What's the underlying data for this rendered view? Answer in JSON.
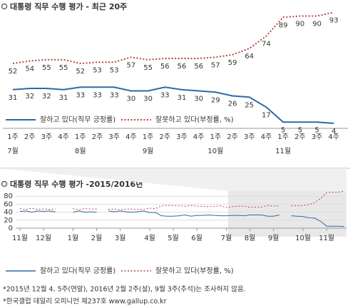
{
  "chart_data": [
    {
      "type": "line",
      "title": "대통령 직무 수행 평가 - 최근 20주",
      "categories": [
        "1주",
        "2주",
        "3주",
        "4주",
        "1주",
        "2주",
        "3주",
        "4주",
        "1주",
        "2주",
        "3주",
        "4주",
        "1주",
        "2주",
        "3주",
        "4주",
        "1주",
        "2주",
        "3주",
        "4주"
      ],
      "months": [
        "7월",
        "8월",
        "9월",
        "10월",
        "11월"
      ],
      "series": [
        {
          "name": "잘하고 있다(직무 긍정률)",
          "color": "#2e6aa6",
          "dashed": false,
          "values": [
            31,
            32,
            32,
            31,
            33,
            33,
            33,
            30,
            30,
            33,
            31,
            30,
            29,
            26,
            25,
            17,
            5,
            5,
            5,
            4
          ]
        },
        {
          "name": "잘못하고 있다(부정률, %)",
          "color": "#b5443f",
          "dashed": true,
          "values": [
            52,
            54,
            55,
            55,
            52,
            53,
            53,
            57,
            55,
            56,
            56,
            56,
            57,
            59,
            64,
            74,
            89,
            90,
            90,
            93
          ]
        }
      ]
    },
    {
      "type": "line",
      "title": "대통령 직무 수행 평가 -2015/2016년",
      "categories": [
        "11월",
        null,
        null,
        null,
        "12월",
        null,
        null,
        null,
        null,
        "1월",
        null,
        null,
        null,
        "2월",
        null,
        null,
        null,
        "3월",
        null,
        null,
        null,
        null,
        "4월",
        null,
        null,
        null,
        "5월",
        null,
        null,
        null,
        "6월",
        null,
        null,
        null,
        null,
        "7월",
        null,
        null,
        null,
        "8월",
        null,
        null,
        null,
        "9월",
        null,
        null,
        null,
        null,
        "10월",
        null,
        null,
        null,
        "11월",
        null,
        null,
        null
      ],
      "ylim": [
        0,
        100
      ],
      "yticks": [
        0,
        20,
        40,
        60,
        80
      ],
      "grid": true,
      "series": [
        {
          "name": "잘하고 있다(직무 긍정률)",
          "color": "#2e6aa6",
          "dashed": false,
          "values": [
            42,
            43,
            40,
            43,
            42,
            43,
            41,
            null,
            null,
            40,
            43,
            40,
            41,
            40,
            null,
            43,
            41,
            43,
            41,
            40,
            41,
            43,
            39,
            39,
            31,
            30,
            30,
            31,
            33,
            30,
            32,
            32,
            33,
            32,
            31,
            31,
            32,
            32,
            31,
            33,
            33,
            33,
            30,
            30,
            33,
            null,
            31,
            30,
            29,
            26,
            25,
            17,
            5,
            5,
            5,
            4
          ]
        },
        {
          "name": "잘못하고 있다(부정률, %)",
          "color": "#b5443f",
          "dashed": true,
          "values": [
            49,
            47,
            50,
            47,
            48,
            47,
            48,
            null,
            null,
            49,
            46,
            49,
            48,
            48,
            null,
            47,
            48,
            46,
            48,
            48,
            47,
            47,
            50,
            49,
            56,
            57,
            56,
            56,
            55,
            57,
            55,
            55,
            54,
            55,
            56,
            52,
            54,
            55,
            55,
            52,
            53,
            53,
            57,
            55,
            56,
            null,
            56,
            56,
            57,
            59,
            64,
            74,
            89,
            90,
            90,
            93
          ]
        }
      ],
      "notes": [
        "*2015년 12월 4, 5주(연말), 2016년 2월 2주(설), 9월 3주(추석)는 조사하지 않음.",
        "*한국갤럽 데일리 오피니언 제237호 www.gallup.co.kr"
      ]
    }
  ]
}
